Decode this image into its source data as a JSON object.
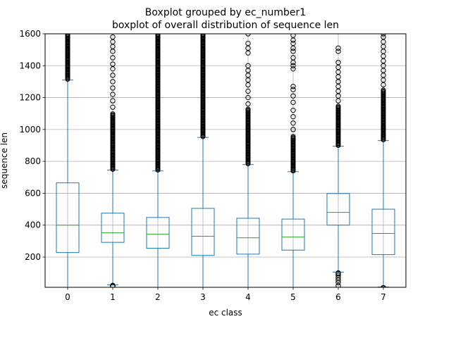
{
  "chart_data": {
    "type": "box",
    "title": "Boxplot grouped by ec_number1",
    "subtitle": "boxplot of overall distribution of sequence len",
    "xlabel": "ec class",
    "ylabel": "sequence len",
    "ylim": [
      10,
      1600
    ],
    "yticks": [
      200,
      400,
      600,
      800,
      1000,
      1200,
      1400,
      1600
    ],
    "grid": true,
    "colors": {
      "box": "#1f77b4",
      "median": "#2ca02c",
      "grid": "#b0b0b0",
      "outlier": "#000000"
    },
    "categories": [
      "0",
      "1",
      "2",
      "3",
      "4",
      "5",
      "6",
      "7"
    ],
    "boxes": [
      {
        "category": "0",
        "whislo": 5,
        "q1": 228,
        "median": 400,
        "q3": 665,
        "whishi": 1310,
        "outliers_low": [],
        "outliers_high_dense": [
          1315,
          1600
        ],
        "outliers_high": []
      },
      {
        "category": "1",
        "whislo": 25,
        "q1": 292,
        "median": 352,
        "q3": 475,
        "whishi": 745,
        "outliers_low": [
          15,
          18,
          20,
          22
        ],
        "outliers_high_dense": [
          750,
          1100
        ],
        "outliers_high": [
          1140,
          1180,
          1220,
          1260,
          1300,
          1340,
          1380,
          1410,
          1450,
          1490,
          1520,
          1550,
          1580
        ]
      },
      {
        "category": "2",
        "whislo": 5,
        "q1": 255,
        "median": 343,
        "q3": 448,
        "whishi": 740,
        "outliers_low": [],
        "outliers_high_dense": [
          745,
          1600
        ],
        "outliers_high": []
      },
      {
        "category": "3",
        "whislo": 5,
        "q1": 210,
        "median": 330,
        "q3": 505,
        "whishi": 950,
        "outliers_low": [],
        "outliers_high_dense": [
          955,
          1600
        ],
        "outliers_high": []
      },
      {
        "category": "4",
        "whislo": 5,
        "q1": 218,
        "median": 320,
        "q3": 443,
        "whishi": 780,
        "outliers_low": [],
        "outliers_high_dense": [
          785,
          1130
        ],
        "outliers_high": [
          1160,
          1200,
          1240,
          1280,
          1310,
          1340,
          1370,
          1400,
          1480,
          1510,
          1540,
          1600
        ]
      },
      {
        "category": "5",
        "whislo": 5,
        "q1": 243,
        "median": 325,
        "q3": 438,
        "whishi": 735,
        "outliers_low": [],
        "outliers_high_dense": [
          740,
          960
        ],
        "outliers_high": [
          1000,
          1040,
          1080,
          1120,
          1170,
          1210,
          1250,
          1270,
          1380,
          1400,
          1420,
          1450,
          1490,
          1510,
          1540,
          1560,
          1590
        ]
      },
      {
        "category": "6",
        "whislo": 105,
        "q1": 400,
        "median": 480,
        "q3": 598,
        "whishi": 895,
        "outliers_low": [
          20,
          40,
          55,
          70,
          85,
          95,
          100
        ],
        "outliers_high_dense": [
          900,
          1150
        ],
        "outliers_high": [
          1180,
          1210,
          1240,
          1270,
          1300,
          1330,
          1360,
          1390,
          1420,
          1490,
          1510
        ]
      },
      {
        "category": "7",
        "whislo": 12,
        "q1": 215,
        "median": 348,
        "q3": 500,
        "whishi": 930,
        "outliers_low": [
          5,
          8
        ],
        "outliers_high_dense": [
          935,
          1250
        ],
        "outliers_high": [
          1280,
          1310,
          1340,
          1370,
          1400,
          1430,
          1460,
          1490,
          1520,
          1550,
          1580,
          1600
        ]
      }
    ]
  }
}
